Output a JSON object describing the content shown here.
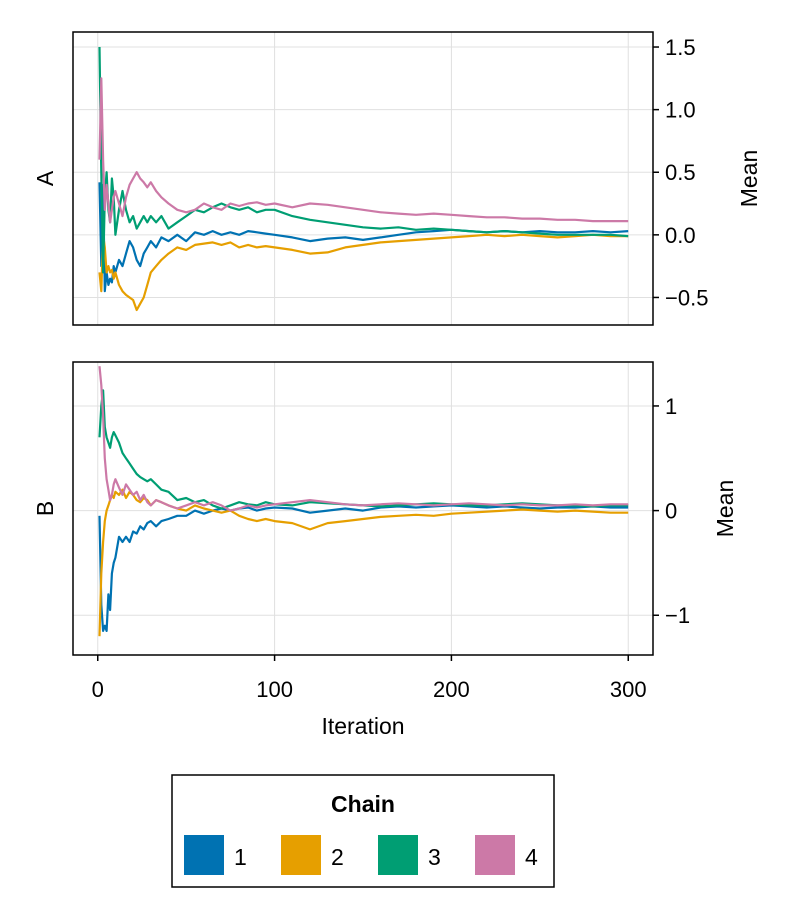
{
  "chart_data": [
    {
      "type": "line",
      "panel_label": "A",
      "ylabel": "Mean",
      "xlabel": "",
      "xlim": [
        -14,
        314
      ],
      "ylim": [
        -0.72,
        1.62
      ],
      "xticks": [
        0,
        100,
        200,
        300
      ],
      "yticks": [
        -0.5,
        0.0,
        0.5,
        1.0,
        1.5
      ],
      "ytick_labels": [
        "−0.5",
        "0.0",
        "0.5",
        "1.0",
        "1.5"
      ],
      "grid": true,
      "series": [
        {
          "name": "1",
          "x": [
            1,
            2,
            3,
            4,
            5,
            6,
            7,
            8,
            9,
            10,
            12,
            14,
            16,
            18,
            20,
            22,
            24,
            26,
            28,
            30,
            33,
            36,
            40,
            45,
            50,
            55,
            60,
            65,
            70,
            75,
            80,
            85,
            90,
            95,
            100,
            110,
            120,
            130,
            140,
            150,
            160,
            170,
            180,
            190,
            200,
            210,
            220,
            230,
            240,
            250,
            260,
            270,
            280,
            290,
            300
          ],
          "y": [
            0.42,
            -0.25,
            0.4,
            -0.45,
            -0.3,
            -0.4,
            -0.35,
            -0.38,
            -0.25,
            -0.3,
            -0.2,
            -0.25,
            -0.15,
            -0.05,
            -0.1,
            -0.2,
            -0.25,
            -0.15,
            -0.1,
            -0.05,
            -0.1,
            -0.02,
            -0.05,
            0.0,
            -0.05,
            0.02,
            0.0,
            0.03,
            0.0,
            0.02,
            0.0,
            0.03,
            0.02,
            0.01,
            0.0,
            -0.02,
            -0.05,
            -0.03,
            -0.02,
            -0.04,
            -0.02,
            0.0,
            0.02,
            0.03,
            0.04,
            0.03,
            0.02,
            0.03,
            0.02,
            0.03,
            0.02,
            0.02,
            0.03,
            0.02,
            0.03
          ]
        },
        {
          "name": "2",
          "x": [
            1,
            2,
            3,
            4,
            5,
            6,
            7,
            8,
            9,
            10,
            12,
            14,
            16,
            18,
            20,
            22,
            24,
            26,
            28,
            30,
            33,
            36,
            40,
            45,
            50,
            55,
            60,
            65,
            70,
            75,
            80,
            85,
            90,
            95,
            100,
            110,
            120,
            130,
            140,
            150,
            160,
            170,
            180,
            190,
            200,
            210,
            220,
            230,
            240,
            250,
            260,
            270,
            280,
            290,
            300
          ],
          "y": [
            -0.3,
            -0.45,
            0.0,
            -0.1,
            -0.3,
            -0.25,
            -0.3,
            -0.28,
            -0.35,
            -0.3,
            -0.4,
            -0.45,
            -0.48,
            -0.5,
            -0.52,
            -0.6,
            -0.55,
            -0.5,
            -0.4,
            -0.3,
            -0.25,
            -0.2,
            -0.15,
            -0.1,
            -0.12,
            -0.08,
            -0.07,
            -0.06,
            -0.08,
            -0.06,
            -0.1,
            -0.08,
            -0.1,
            -0.09,
            -0.1,
            -0.12,
            -0.15,
            -0.14,
            -0.1,
            -0.08,
            -0.06,
            -0.05,
            -0.04,
            -0.03,
            -0.02,
            -0.01,
            0.0,
            -0.01,
            0.0,
            -0.01,
            -0.02,
            -0.01,
            0.0,
            -0.01,
            -0.01
          ]
        },
        {
          "name": "3",
          "x": [
            1,
            2,
            3,
            4,
            5,
            6,
            7,
            8,
            9,
            10,
            12,
            14,
            16,
            18,
            20,
            22,
            24,
            26,
            28,
            30,
            33,
            36,
            40,
            45,
            50,
            55,
            60,
            65,
            70,
            75,
            80,
            85,
            90,
            95,
            100,
            110,
            120,
            130,
            140,
            150,
            160,
            170,
            180,
            190,
            200,
            210,
            220,
            230,
            240,
            250,
            260,
            270,
            280,
            290,
            300
          ],
          "y": [
            1.5,
            0.5,
            -0.3,
            0.3,
            0.5,
            0.2,
            0.1,
            0.45,
            0.3,
            0.0,
            0.2,
            0.35,
            0.2,
            0.1,
            0.15,
            0.05,
            0.1,
            0.15,
            0.1,
            0.15,
            0.1,
            0.15,
            0.05,
            0.1,
            0.15,
            0.2,
            0.18,
            0.22,
            0.25,
            0.22,
            0.2,
            0.22,
            0.18,
            0.2,
            0.2,
            0.15,
            0.12,
            0.1,
            0.08,
            0.06,
            0.05,
            0.06,
            0.04,
            0.05,
            0.04,
            0.03,
            0.02,
            0.03,
            0.02,
            0.01,
            0.0,
            0.0,
            0.0,
            0.0,
            -0.01
          ]
        },
        {
          "name": "4",
          "x": [
            1,
            2,
            3,
            4,
            5,
            6,
            7,
            8,
            9,
            10,
            12,
            14,
            16,
            18,
            20,
            22,
            24,
            26,
            28,
            30,
            33,
            36,
            40,
            45,
            50,
            55,
            60,
            65,
            70,
            75,
            80,
            85,
            90,
            95,
            100,
            110,
            120,
            130,
            140,
            150,
            160,
            170,
            180,
            190,
            200,
            210,
            220,
            230,
            240,
            250,
            260,
            270,
            280,
            290,
            300
          ],
          "y": [
            0.6,
            1.25,
            0.6,
            0.2,
            0.4,
            0.25,
            0.1,
            0.2,
            0.3,
            0.35,
            0.25,
            0.15,
            0.3,
            0.4,
            0.45,
            0.5,
            0.45,
            0.42,
            0.38,
            0.42,
            0.35,
            0.3,
            0.25,
            0.2,
            0.18,
            0.2,
            0.25,
            0.22,
            0.2,
            0.25,
            0.23,
            0.25,
            0.26,
            0.24,
            0.25,
            0.22,
            0.25,
            0.24,
            0.22,
            0.2,
            0.18,
            0.17,
            0.16,
            0.17,
            0.16,
            0.15,
            0.14,
            0.14,
            0.13,
            0.13,
            0.12,
            0.12,
            0.11,
            0.11,
            0.11
          ]
        }
      ]
    },
    {
      "type": "line",
      "panel_label": "B",
      "ylabel": "Mean",
      "xlabel": "Iteration",
      "xlim": [
        -14,
        314
      ],
      "ylim": [
        -1.38,
        1.42
      ],
      "xticks": [
        0,
        100,
        200,
        300
      ],
      "xtick_labels": [
        "0",
        "100",
        "200",
        "300"
      ],
      "yticks": [
        -1,
        0,
        1
      ],
      "ytick_labels": [
        "−1",
        "0",
        "1"
      ],
      "grid": true,
      "series": [
        {
          "name": "1",
          "x": [
            1,
            2,
            3,
            4,
            5,
            6,
            7,
            8,
            9,
            10,
            12,
            14,
            16,
            18,
            20,
            22,
            24,
            26,
            28,
            30,
            33,
            36,
            40,
            45,
            50,
            55,
            60,
            65,
            70,
            75,
            80,
            85,
            90,
            95,
            100,
            110,
            120,
            130,
            140,
            150,
            160,
            170,
            180,
            190,
            200,
            210,
            220,
            230,
            240,
            250,
            260,
            270,
            280,
            290,
            300
          ],
          "y": [
            -0.05,
            -0.9,
            -1.15,
            -1.1,
            -1.15,
            -0.8,
            -0.95,
            -0.6,
            -0.5,
            -0.45,
            -0.25,
            -0.3,
            -0.25,
            -0.3,
            -0.2,
            -0.22,
            -0.15,
            -0.18,
            -0.12,
            -0.1,
            -0.15,
            -0.1,
            -0.08,
            -0.05,
            -0.05,
            0.0,
            -0.03,
            0.0,
            0.02,
            0.0,
            0.02,
            0.03,
            0.0,
            0.02,
            0.03,
            0.02,
            -0.02,
            0.0,
            0.02,
            0.0,
            0.03,
            0.04,
            0.03,
            0.04,
            0.05,
            0.04,
            0.03,
            0.04,
            0.03,
            0.02,
            0.03,
            0.03,
            0.04,
            0.03,
            0.03
          ]
        },
        {
          "name": "2",
          "x": [
            1,
            2,
            3,
            4,
            5,
            6,
            7,
            8,
            9,
            10,
            12,
            14,
            16,
            18,
            20,
            22,
            24,
            26,
            28,
            30,
            33,
            36,
            40,
            45,
            50,
            55,
            60,
            65,
            70,
            75,
            80,
            85,
            90,
            95,
            100,
            110,
            120,
            130,
            140,
            150,
            160,
            170,
            180,
            190,
            200,
            210,
            220,
            230,
            240,
            250,
            260,
            270,
            280,
            290,
            300
          ],
          "y": [
            -1.2,
            -0.6,
            -0.3,
            -0.1,
            0.0,
            0.05,
            0.1,
            0.15,
            0.12,
            0.18,
            0.15,
            0.2,
            0.12,
            0.18,
            0.15,
            0.1,
            0.08,
            0.12,
            0.1,
            0.05,
            0.1,
            0.08,
            0.05,
            0.02,
            0.0,
            0.05,
            0.02,
            0.0,
            -0.02,
            0.0,
            -0.05,
            -0.08,
            -0.1,
            -0.08,
            -0.1,
            -0.12,
            -0.18,
            -0.12,
            -0.1,
            -0.08,
            -0.06,
            -0.05,
            -0.04,
            -0.05,
            -0.03,
            -0.02,
            -0.01,
            0.0,
            0.01,
            0.0,
            -0.01,
            0.0,
            -0.01,
            -0.02,
            -0.02
          ]
        },
        {
          "name": "3",
          "x": [
            1,
            2,
            3,
            4,
            5,
            6,
            7,
            8,
            9,
            10,
            12,
            14,
            16,
            18,
            20,
            22,
            24,
            26,
            28,
            30,
            33,
            36,
            40,
            45,
            50,
            55,
            60,
            65,
            70,
            75,
            80,
            85,
            90,
            95,
            100,
            110,
            120,
            130,
            140,
            150,
            160,
            170,
            180,
            190,
            200,
            210,
            220,
            230,
            240,
            250,
            260,
            270,
            280,
            290,
            300
          ],
          "y": [
            0.7,
            1.0,
            1.15,
            0.8,
            0.7,
            0.65,
            0.6,
            0.7,
            0.75,
            0.72,
            0.65,
            0.55,
            0.5,
            0.45,
            0.4,
            0.35,
            0.32,
            0.3,
            0.28,
            0.3,
            0.25,
            0.2,
            0.18,
            0.1,
            0.12,
            0.08,
            0.1,
            0.05,
            0.02,
            0.05,
            0.08,
            0.06,
            0.05,
            0.08,
            0.06,
            0.05,
            0.08,
            0.07,
            0.06,
            0.05,
            0.04,
            0.05,
            0.06,
            0.07,
            0.06,
            0.05,
            0.05,
            0.06,
            0.07,
            0.06,
            0.05,
            0.05,
            0.04,
            0.05,
            0.05
          ]
        },
        {
          "name": "4",
          "x": [
            1,
            2,
            3,
            4,
            5,
            6,
            7,
            8,
            9,
            10,
            12,
            14,
            16,
            18,
            20,
            22,
            24,
            26,
            28,
            30,
            33,
            36,
            40,
            45,
            50,
            55,
            60,
            65,
            70,
            75,
            80,
            85,
            90,
            95,
            100,
            110,
            120,
            130,
            140,
            150,
            160,
            170,
            180,
            190,
            200,
            210,
            220,
            230,
            240,
            250,
            260,
            270,
            280,
            290,
            300
          ],
          "y": [
            1.38,
            1.2,
            0.9,
            0.5,
            0.3,
            0.2,
            0.1,
            0.15,
            0.25,
            0.3,
            0.22,
            0.15,
            0.25,
            0.2,
            0.15,
            0.18,
            0.1,
            0.15,
            0.08,
            0.05,
            0.1,
            0.08,
            0.05,
            0.02,
            0.05,
            0.08,
            0.05,
            0.08,
            0.05,
            0.0,
            0.02,
            0.05,
            0.03,
            0.05,
            0.06,
            0.08,
            0.1,
            0.08,
            0.06,
            0.05,
            0.06,
            0.07,
            0.06,
            0.05,
            0.06,
            0.07,
            0.06,
            0.05,
            0.06,
            0.05,
            0.05,
            0.06,
            0.05,
            0.06,
            0.06
          ]
        }
      ]
    }
  ],
  "legend": {
    "title": "Chain",
    "entries": [
      "1",
      "2",
      "3",
      "4"
    ]
  },
  "colors": {
    "1": "#0072b2",
    "2": "#e69f00",
    "3": "#009e73",
    "4": "#cc79a7",
    "grid": "#e0e0e0",
    "frame": "#000000"
  }
}
